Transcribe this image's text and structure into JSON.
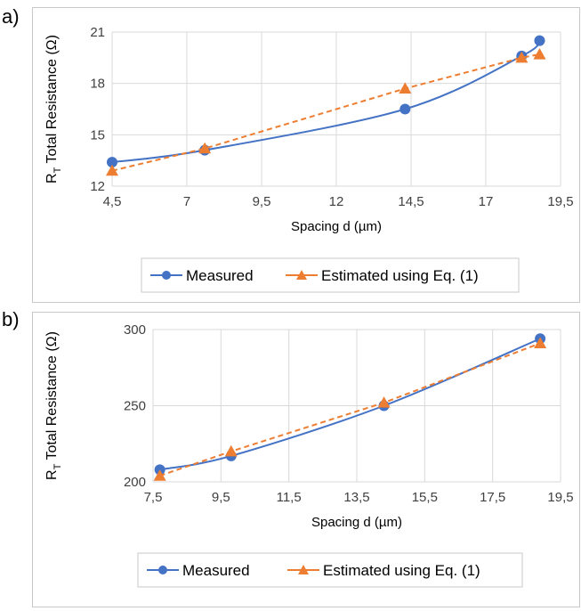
{
  "panels": [
    {
      "letter": "a)"
    },
    {
      "letter": "b)"
    }
  ],
  "chart_data": [
    {
      "type": "line",
      "xlabel": "Spacing d (µm)",
      "ylabel_main": "R",
      "ylabel_sub": "T",
      "ylabel_rest": " Total Resistance (Ω)",
      "x_ticks": [
        "4,5",
        "7",
        "9,5",
        "12",
        "14,5",
        "17",
        "19,5"
      ],
      "x_tick_values": [
        4.5,
        7,
        9.5,
        12,
        14.5,
        17,
        19.5
      ],
      "y_ticks": [
        "12",
        "15",
        "18",
        "21"
      ],
      "y_tick_values": [
        12,
        15,
        18,
        21
      ],
      "xlim": [
        4.5,
        19.5
      ],
      "ylim": [
        12,
        21
      ],
      "grid": true,
      "legend_position": "bottom",
      "series": [
        {
          "name": "Measured",
          "marker": "circle",
          "style": "solid",
          "color": "#4472C4",
          "x": [
            4.5,
            7.6,
            14.3,
            18.2,
            18.8
          ],
          "y": [
            13.4,
            14.1,
            16.5,
            19.6,
            20.5
          ]
        },
        {
          "name": "Estimated using Eq. (1)",
          "marker": "triangle",
          "style": "dashed",
          "color": "#ED7D31",
          "x": [
            4.5,
            7.6,
            14.3,
            18.2,
            18.8
          ],
          "y": [
            12.9,
            14.2,
            17.7,
            19.5,
            19.7
          ]
        }
      ]
    },
    {
      "type": "line",
      "xlabel": "Spacing d (µm)",
      "ylabel_main": "R",
      "ylabel_sub": "T",
      "ylabel_rest": " Total Resistance (Ω)",
      "x_ticks": [
        "7,5",
        "9,5",
        "11,5",
        "13,5",
        "15,5",
        "17,5",
        "19,5"
      ],
      "x_tick_values": [
        7.5,
        9.5,
        11.5,
        13.5,
        15.5,
        17.5,
        19.5
      ],
      "y_ticks": [
        "200",
        "250",
        "300"
      ],
      "y_tick_values": [
        200,
        250,
        300
      ],
      "xlim": [
        7.5,
        19.5
      ],
      "ylim": [
        200,
        300
      ],
      "grid": true,
      "legend_position": "bottom",
      "series": [
        {
          "name": "Measured",
          "marker": "circle",
          "style": "solid",
          "color": "#4472C4",
          "x": [
            7.7,
            9.8,
            14.3,
            18.9
          ],
          "y": [
            208,
            217,
            250,
            294
          ]
        },
        {
          "name": "Estimated using Eq. (1)",
          "marker": "triangle",
          "style": "dashed",
          "color": "#ED7D31",
          "x": [
            7.7,
            9.8,
            14.3,
            18.9
          ],
          "y": [
            204,
            220,
            252,
            291
          ]
        }
      ]
    }
  ]
}
